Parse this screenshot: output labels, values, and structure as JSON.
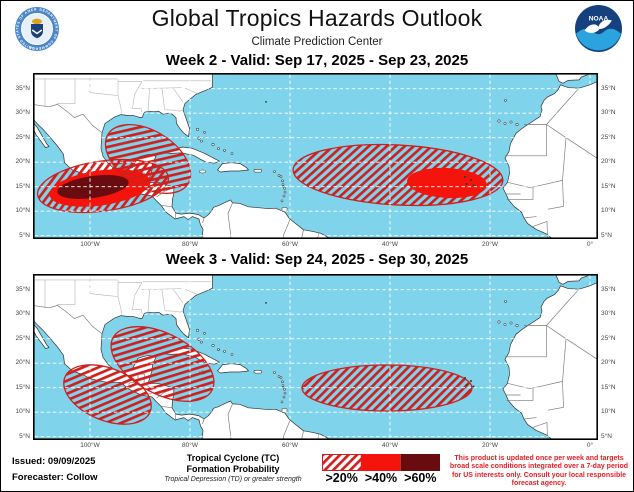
{
  "header": {
    "title": "Global Tropics Hazards Outlook",
    "subtitle": "Climate Prediction Center",
    "doc_seal_ring_top": "DEPARTMENT OF COMMERCE",
    "doc_seal_ring_bottom": "UNITED STATES OF AMERICA",
    "noaa_logo_text": "NOAA"
  },
  "panels": [
    {
      "title": "Week 2 - Valid: Sep 17, 2025 - Sep 23, 2025",
      "hazard_regions": [
        {
          "area": "Eastern Pacific south of Mexico",
          "max_probability": ">60%"
        },
        {
          "area": "Gulf of Mexico and northwest Caribbean",
          "max_probability": ">20%"
        },
        {
          "area": "Central tropical Atlantic near Cabo Verde",
          "max_probability": ">40%"
        }
      ]
    },
    {
      "title": "Week 3 - Valid: Sep 24, 2025 - Sep 30, 2025",
      "hazard_regions": [
        {
          "area": "Eastern Pacific south of Mexico",
          "max_probability": ">20%"
        },
        {
          "area": "Gulf of Mexico and western Cuba",
          "max_probability": ">20%"
        },
        {
          "area": "Central tropical Atlantic",
          "max_probability": ">20%"
        }
      ]
    }
  ],
  "axes": {
    "lat_labels": [
      "35°N",
      "30°N",
      "25°N",
      "20°N",
      "15°N",
      "10°N",
      "5°N"
    ],
    "lon_labels": [
      "100°W",
      "80°W",
      "60°W",
      "40°W",
      "20°W",
      "0°"
    ]
  },
  "legend": {
    "title_line1": "Tropical Cyclone (TC)",
    "title_line2": "Formation Probability",
    "subtitle": "Tropical Depression (TD) or greater strength",
    "items": [
      {
        "label": ">20%",
        "style": "hatched"
      },
      {
        "label": ">40%",
        "style": "solid-red"
      },
      {
        "label": ">60%",
        "style": "dark-red"
      }
    ]
  },
  "footer": {
    "issued_label": "Issued:",
    "issued_value": "09/09/2025",
    "forecaster_label": "Forecaster:",
    "forecaster_value": "Collow",
    "disclaimer": "This product is updated once per week and targets broad scale conditions integrated over a 7-day period for US interests only. Consult your local responsible forecast agency."
  },
  "colors": {
    "ocean": "#7FD4EC",
    "land": "#FFFFFF",
    "hatch_red": "#D0201E",
    "solid_red": "#F5140B",
    "dark_red": "#680C10",
    "disclaimer_red": "#E31E24",
    "noaa_dark_blue": "#16417F",
    "noaa_light_blue": "#2BA3DE",
    "seal_blue": "#4A86C8"
  }
}
